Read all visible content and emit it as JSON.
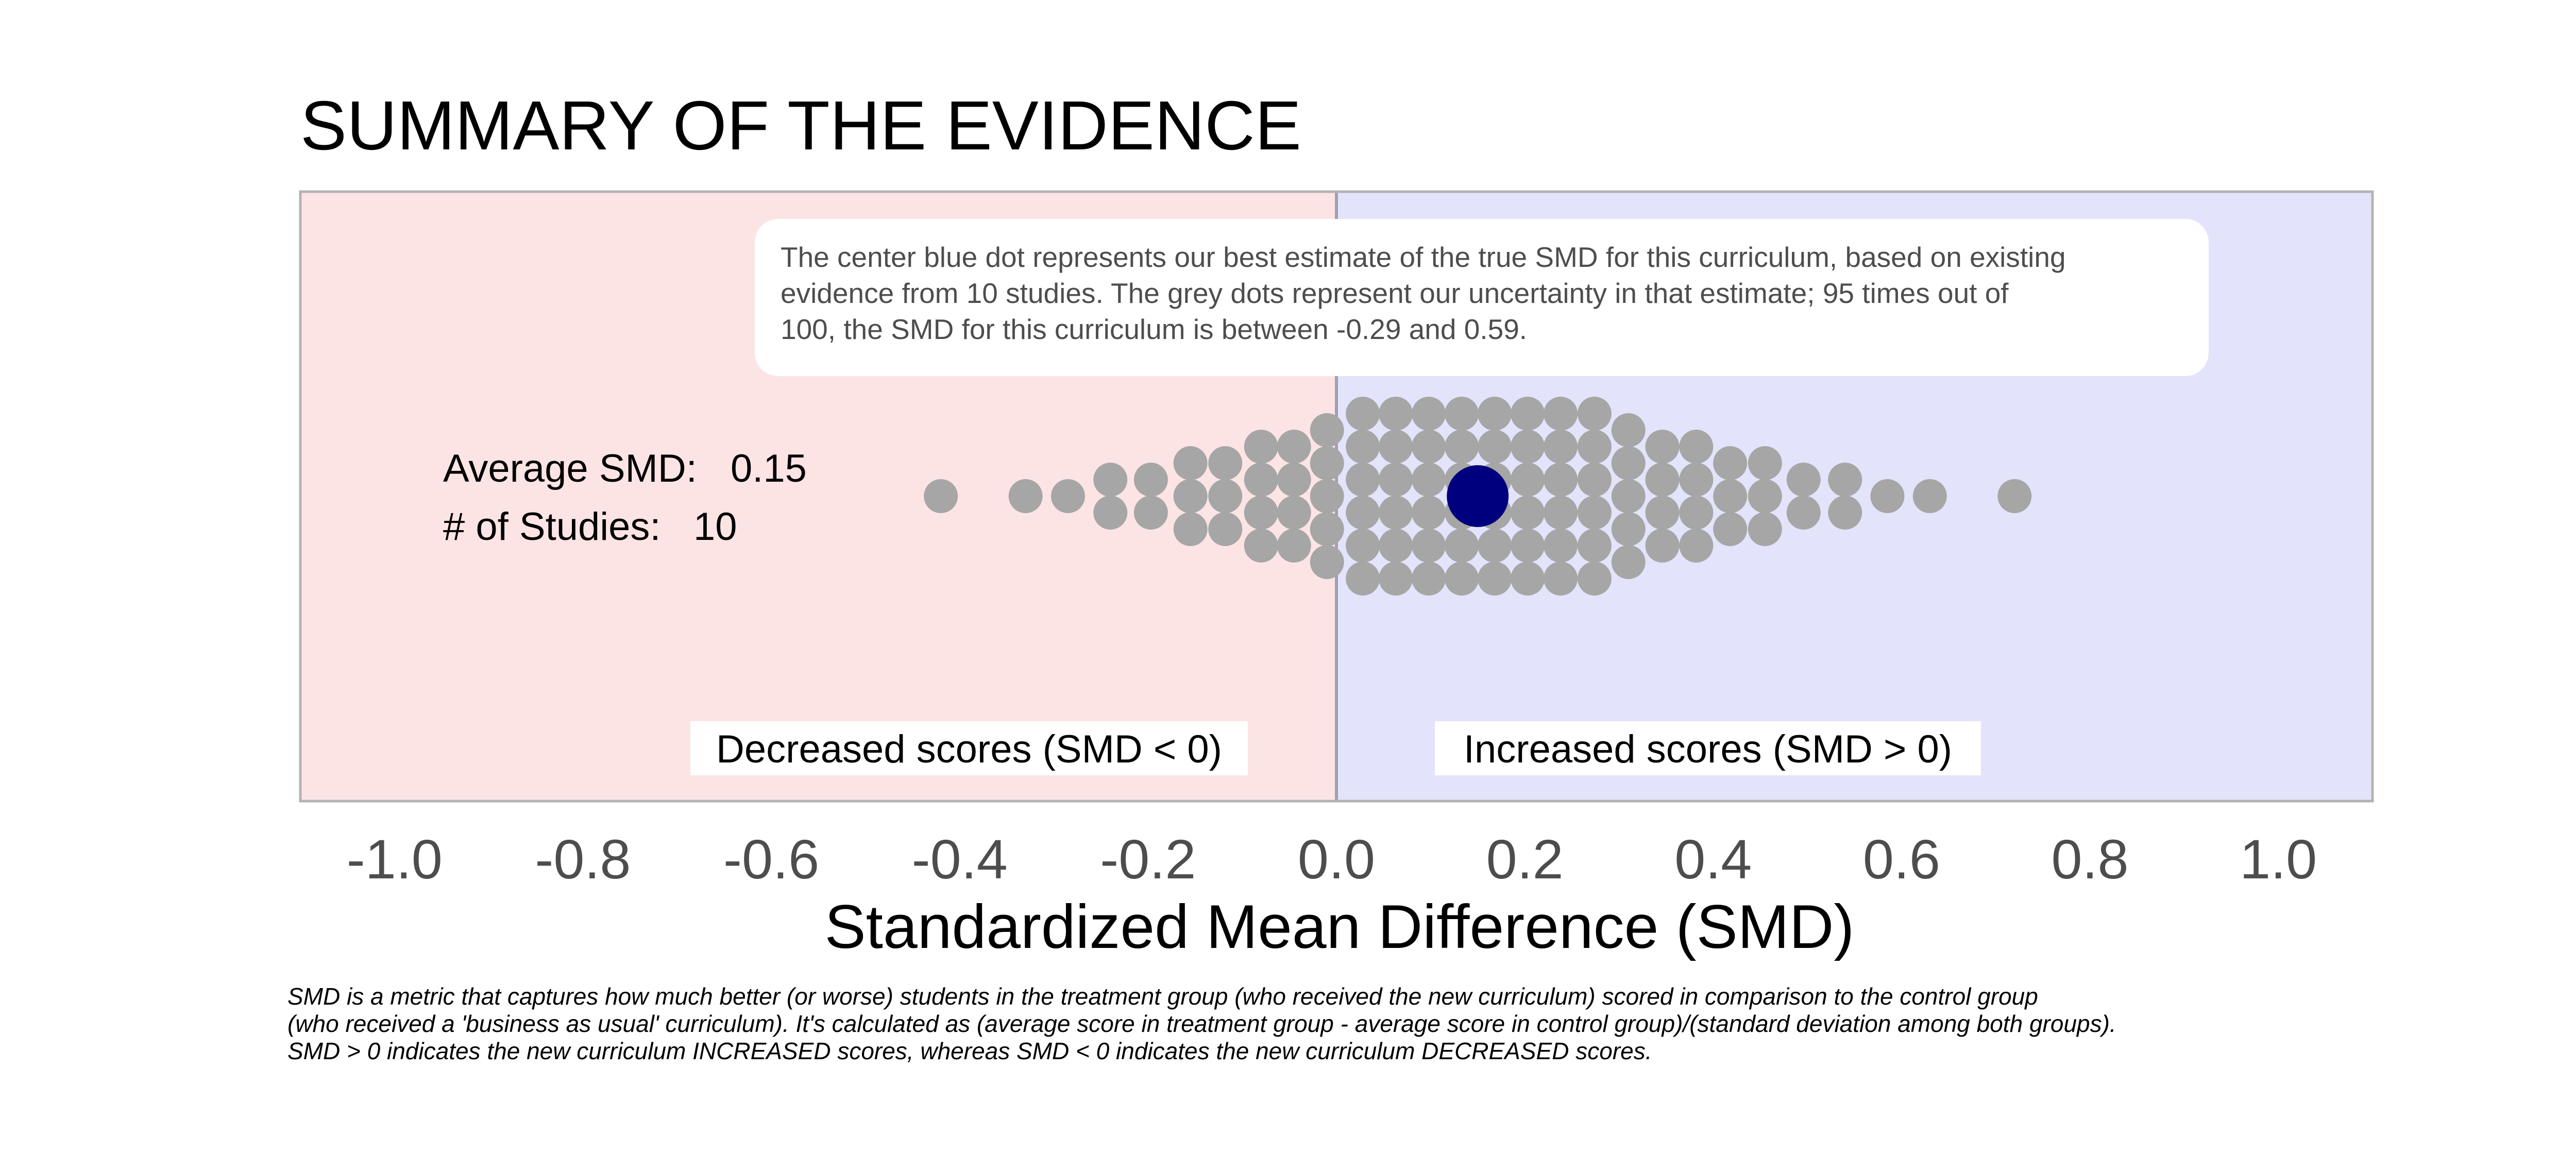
{
  "chart_data": {
    "type": "scatter",
    "title": "SUMMARY OF THE EVIDENCE",
    "xlabel": "Standardized Mean Difference (SMD)",
    "xlim": [
      -1.1,
      1.1
    ],
    "xticks": [
      -1.0,
      -0.8,
      -0.6,
      -0.4,
      -0.2,
      0.0,
      0.2,
      0.4,
      0.6,
      0.8,
      1.0
    ],
    "xtick_labels": [
      "-1.0",
      "-0.8",
      "-0.6",
      "-0.4",
      "-0.2",
      "0.0",
      "0.2",
      "0.4",
      "0.6",
      "0.8",
      "1.0"
    ],
    "grid": false,
    "estimate": 0.15,
    "ci": [
      -0.29,
      0.59
    ],
    "n_studies": 10,
    "uncertainty_dots": [
      {
        "x": -0.42,
        "n": 1
      },
      {
        "x": -0.33,
        "n": 1
      },
      {
        "x": -0.285,
        "n": 1
      },
      {
        "x": -0.24,
        "n": 2
      },
      {
        "x": -0.197,
        "n": 2
      },
      {
        "x": -0.155,
        "n": 3
      },
      {
        "x": -0.118,
        "n": 3
      },
      {
        "x": -0.08,
        "n": 4
      },
      {
        "x": -0.045,
        "n": 4
      },
      {
        "x": -0.01,
        "n": 5
      },
      {
        "x": 0.028,
        "n": 6
      },
      {
        "x": 0.063,
        "n": 6
      },
      {
        "x": 0.098,
        "n": 6
      },
      {
        "x": 0.133,
        "n": 6
      },
      {
        "x": 0.168,
        "n": 6
      },
      {
        "x": 0.203,
        "n": 6
      },
      {
        "x": 0.238,
        "n": 6
      },
      {
        "x": 0.274,
        "n": 6
      },
      {
        "x": 0.31,
        "n": 5
      },
      {
        "x": 0.346,
        "n": 4
      },
      {
        "x": 0.382,
        "n": 4
      },
      {
        "x": 0.418,
        "n": 3
      },
      {
        "x": 0.455,
        "n": 3
      },
      {
        "x": 0.496,
        "n": 2
      },
      {
        "x": 0.54,
        "n": 2
      },
      {
        "x": 0.585,
        "n": 1
      },
      {
        "x": 0.63,
        "n": 1
      },
      {
        "x": 0.72,
        "n": 1
      }
    ],
    "colors": {
      "negative_region": "#fde4e4",
      "positive_region": "#e3e3fb",
      "estimate_dot": "#00007f",
      "uncertainty_dot": "#a6a6a6",
      "frame": "#b3b3b3"
    }
  },
  "stats": {
    "avg_label": "Average SMD:",
    "avg_value": "0.15",
    "studies_label": "# of Studies:",
    "studies_value": "10"
  },
  "annotation": {
    "line1": "The center blue dot represents our best estimate of the true SMD for this curriculum, based on existing",
    "line2": "evidence from 10 studies. The grey dots represent our uncertainty in that estimate; 95 times out of",
    "line3": "100, the SMD for this curriculum is between -0.29 and 0.59."
  },
  "regions": {
    "negative": "Decreased scores (SMD < 0)",
    "positive": "Increased scores (SMD > 0)"
  },
  "footnote": {
    "line1": "SMD is a metric that captures how much better (or worse) students in the treatment group (who received the new curriculum) scored in comparison to the control group",
    "line2": "(who received a 'business as usual' curriculum). It's calculated as (average score in treatment group - average score in control group)/(standard deviation among both groups).",
    "line3": "SMD > 0 indicates the new curriculum INCREASED scores, whereas SMD < 0 indicates the new curriculum DECREASED scores."
  }
}
